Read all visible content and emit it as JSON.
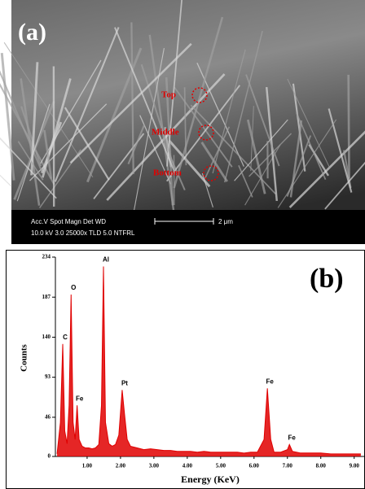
{
  "panel_a": {
    "label": "(a)",
    "markers": [
      "Top",
      "Middle",
      "Bottom"
    ],
    "info_header": "Acc.V  Spot Magn   Det  WD",
    "info_values": "10.0 kV 3.0   25000x  TLD 5.0    NTFRL",
    "scale_bar": "2 μm"
  },
  "chart_data": {
    "type": "line",
    "panel_label": "(b)",
    "x_label": "Energy (KeV)",
    "y_label": "Counts",
    "color": "#e00000",
    "x": [
      0.1,
      0.2,
      0.27,
      0.33,
      0.4,
      0.46,
      0.52,
      0.58,
      0.64,
      0.7,
      0.76,
      0.85,
      0.95,
      1.05,
      1.15,
      1.25,
      1.35,
      1.43,
      1.49,
      1.55,
      1.65,
      1.75,
      1.85,
      1.95,
      2.05,
      2.12,
      2.2,
      2.3,
      2.5,
      2.7,
      2.9,
      3.1,
      3.3,
      3.5,
      3.7,
      3.9,
      4.1,
      4.3,
      4.5,
      4.7,
      4.9,
      5.1,
      5.3,
      5.5,
      5.7,
      5.9,
      6.1,
      6.3,
      6.4,
      6.5,
      6.6,
      6.8,
      7.0,
      7.06,
      7.15,
      7.4,
      7.7,
      8.0,
      8.3,
      8.6,
      8.9,
      9.2
    ],
    "values": [
      3,
      40,
      132,
      30,
      15,
      60,
      190,
      40,
      20,
      60,
      20,
      12,
      10,
      10,
      9,
      10,
      14,
      60,
      223,
      40,
      15,
      12,
      14,
      25,
      78,
      50,
      20,
      12,
      10,
      8,
      9,
      8,
      7,
      7,
      6,
      6,
      6,
      5,
      6,
      5,
      5,
      5,
      5,
      5,
      4,
      5,
      5,
      20,
      80,
      20,
      5,
      5,
      8,
      14,
      6,
      4,
      4,
      4,
      3,
      3,
      3,
      3
    ],
    "peaks": [
      {
        "label": "C",
        "x": 0.27,
        "value": 132
      },
      {
        "label": "O",
        "x": 0.52,
        "value": 190
      },
      {
        "label": "Fe",
        "x": 0.7,
        "value": 60
      },
      {
        "label": "Al",
        "x": 1.49,
        "value": 223
      },
      {
        "label": "Pt",
        "x": 2.05,
        "value": 78
      },
      {
        "label": "Fe",
        "x": 6.4,
        "value": 80
      },
      {
        "label": "Fe",
        "x": 7.06,
        "value": 14
      }
    ],
    "xlim": [
      0.05,
      9.3
    ],
    "ylim": [
      0,
      234
    ],
    "xticks": [
      {
        "value": 1,
        "label": "1.00"
      },
      {
        "value": 2,
        "label": "2.00"
      },
      {
        "value": 3,
        "label": "3.00"
      },
      {
        "value": 4,
        "label": "4.00"
      },
      {
        "value": 5,
        "label": "5.00"
      },
      {
        "value": 6,
        "label": "6.00"
      },
      {
        "value": 7,
        "label": "7.00"
      },
      {
        "value": 8,
        "label": "8.00"
      },
      {
        "value": 9,
        "label": "9.00"
      }
    ],
    "yticks": [
      0,
      46,
      93,
      140,
      187,
      234
    ]
  }
}
